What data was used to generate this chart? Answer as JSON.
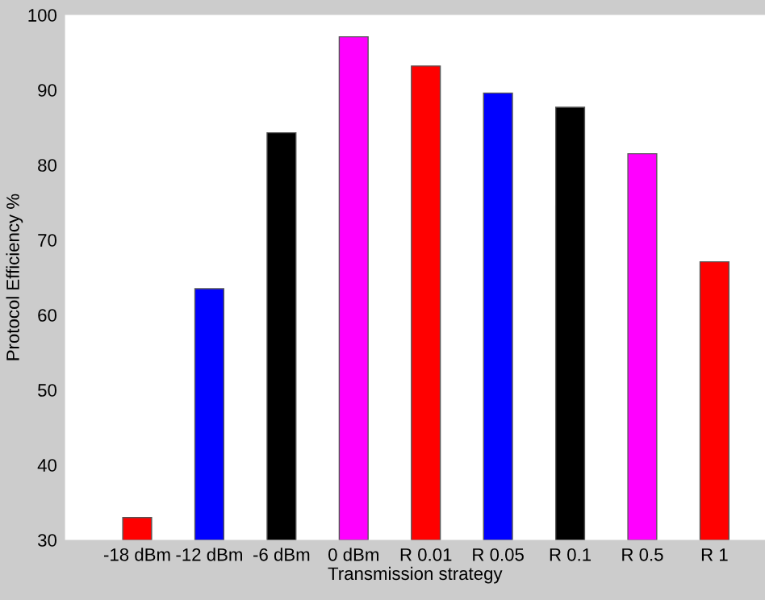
{
  "chart_data": {
    "type": "bar",
    "xlabel": "Transmission strategy",
    "ylabel": "Protocol Efficiency %",
    "categories": [
      "-18 dBm",
      "-12 dBm",
      "-6 dBm",
      "0 dBm",
      "R 0.01",
      "R 0.05",
      "R 0.1",
      "R 0.5",
      "R 1"
    ],
    "values": [
      33.0,
      63.5,
      84.3,
      97.1,
      93.2,
      89.6,
      87.7,
      81.5,
      67.1
    ],
    "colors": [
      "#ff0000",
      "#0000ff",
      "#000000",
      "#ff00ff",
      "#ff0000",
      "#0000ff",
      "#000000",
      "#ff00ff",
      "#ff0000"
    ],
    "ylim": [
      30,
      100
    ],
    "yticks": [
      30,
      40,
      50,
      60,
      70,
      80,
      90,
      100
    ],
    "grid": false,
    "legend": false
  }
}
